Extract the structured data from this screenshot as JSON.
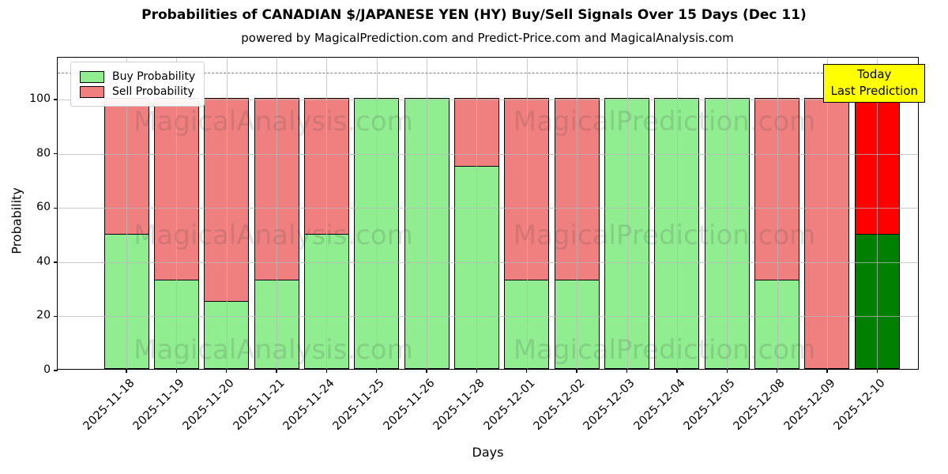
{
  "title": "Probabilities of CANADIAN $/JAPANESE YEN (HY) Buy/Sell Signals Over 15 Days (Dec 11)",
  "subtitle": "powered by MagicalPrediction.com and Predict-Price.com and MagicalAnalysis.com",
  "legend": {
    "buy_label": "Buy Probability",
    "sell_label": "Sell Probability"
  },
  "annotation": {
    "line1": "Today",
    "line2": "Last Prediction",
    "bg_color": "#ffff00"
  },
  "axes": {
    "ylabel": "Probability",
    "xlabel": "Days",
    "yticks": [
      0,
      20,
      40,
      60,
      80,
      100
    ],
    "ylim": [
      0,
      115.5
    ],
    "dashed_line_y": 110,
    "grid": true
  },
  "watermarks": {
    "left_text": "MagicalAnalysis.com",
    "right_text": "MagicalPrediction.com"
  },
  "colors": {
    "buy": "#90ee90",
    "sell": "#f08080",
    "last_buy": "#008000",
    "last_sell": "#ff0000",
    "bar_edge": "#000000",
    "grid": "#b8b8b8",
    "dashed_line": "#7f7f7f",
    "annotation_bg": "#ffff00"
  },
  "chart_data": {
    "type": "bar",
    "stacked": true,
    "title": "Probabilities of CANADIAN $/JAPANESE YEN (HY) Buy/Sell Signals Over 15 Days (Dec 11)",
    "xlabel": "Days",
    "ylabel": "Probability",
    "ylim": [
      0,
      115.5
    ],
    "legend_position": "upper left",
    "categories": [
      "2025-11-18",
      "2025-11-19",
      "2025-11-20",
      "2025-11-21",
      "2025-11-24",
      "2025-11-25",
      "2025-11-26",
      "2025-11-28",
      "2025-12-01",
      "2025-12-02",
      "2025-12-03",
      "2025-12-04",
      "2025-12-05",
      "2025-12-08",
      "2025-12-09",
      "2025-12-10"
    ],
    "series": [
      {
        "name": "Buy Probability",
        "color": "#90ee90",
        "values": [
          50,
          33,
          25,
          33,
          50,
          100,
          100,
          75,
          33,
          33,
          100,
          100,
          100,
          33,
          0,
          50
        ]
      },
      {
        "name": "Sell Probability",
        "color": "#f08080",
        "values": [
          50,
          67,
          75,
          67,
          50,
          0,
          0,
          25,
          67,
          67,
          0,
          0,
          0,
          67,
          100,
          50
        ]
      }
    ],
    "last_bar_highlight": {
      "buy_color": "#008000",
      "sell_color": "#ff0000"
    }
  }
}
